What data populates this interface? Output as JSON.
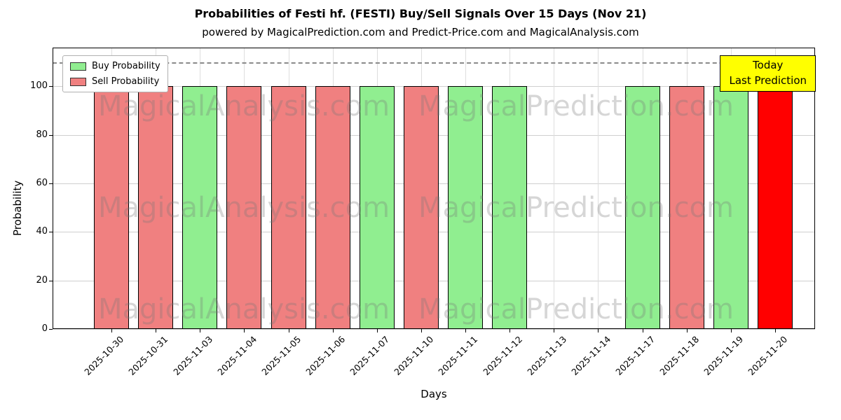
{
  "figure": {
    "title": "Probabilities of Festi hf. (FESTI) Buy/Sell Signals Over 15 Days (Nov 21)",
    "subtitle": "powered by MagicalPrediction.com and Predict-Price.com and MagicalAnalysis.com"
  },
  "chart_data": {
    "type": "bar",
    "title": "Probabilities of Festi hf. (FESTI) Buy/Sell Signals Over 15 Days (Nov 21)",
    "xlabel": "Days",
    "ylabel": "Probability",
    "ylim": [
      0,
      116
    ],
    "yticks": [
      0,
      20,
      40,
      60,
      80,
      100
    ],
    "grid": true,
    "dashed_line_y": 110,
    "categories": [
      "2025-10-30",
      "2025-10-31",
      "2025-11-03",
      "2025-11-04",
      "2025-11-05",
      "2025-11-06",
      "2025-11-07",
      "2025-11-10",
      "2025-11-11",
      "2025-11-12",
      "2025-11-13",
      "2025-11-14",
      "2025-11-17",
      "2025-11-18",
      "2025-11-19",
      "2025-11-20"
    ],
    "series": [
      {
        "name": "Buy Probability",
        "color": "#90EE90",
        "values": [
          null,
          null,
          100,
          null,
          null,
          null,
          100,
          null,
          100,
          100,
          null,
          null,
          100,
          null,
          100,
          null
        ]
      },
      {
        "name": "Sell Probability",
        "color": "#F08080",
        "values": [
          100,
          100,
          null,
          100,
          100,
          100,
          null,
          100,
          null,
          null,
          null,
          null,
          null,
          100,
          null,
          null
        ]
      },
      {
        "name": "Last Prediction",
        "color": "#FF0000",
        "values": [
          null,
          null,
          null,
          null,
          null,
          null,
          null,
          null,
          null,
          null,
          null,
          null,
          null,
          null,
          null,
          100
        ]
      }
    ],
    "legend": {
      "position": "upper left",
      "entries": [
        {
          "label": "Buy Probability",
          "color": "#90EE90"
        },
        {
          "label": "Sell Probability",
          "color": "#F08080"
        }
      ]
    },
    "annotation": {
      "lines": [
        "Today",
        "Last Prediction"
      ],
      "bg_color": "#FFFF00"
    },
    "watermarks": [
      "MagicalAnalysis.com",
      "MagicalPrediction.com"
    ]
  }
}
